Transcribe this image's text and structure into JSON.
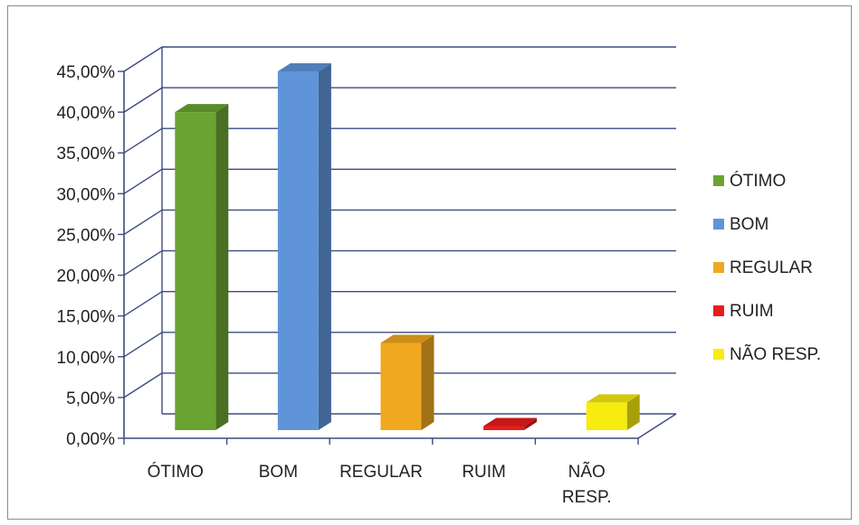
{
  "chart_data": {
    "type": "bar",
    "categories": [
      "ÓTIMO",
      "BOM",
      "REGULAR",
      "RUIM",
      "NÃO RESP."
    ],
    "category_lines": [
      [
        "ÓTIMO"
      ],
      [
        "BOM"
      ],
      [
        "REGULAR"
      ],
      [
        "RUIM"
      ],
      [
        "NÃO",
        "RESP."
      ]
    ],
    "values": [
      39.0,
      44.0,
      10.7,
      0.5,
      3.4
    ],
    "colors": [
      "#6aa332",
      "#5f95d8",
      "#f0a820",
      "#e81c1c",
      "#f7ec10"
    ],
    "ylim": [
      0,
      45
    ],
    "ytick_labels": [
      "0,00%",
      "5,00%",
      "10,00%",
      "15,00%",
      "20,00%",
      "25,00%",
      "30,00%",
      "35,00%",
      "40,00%",
      "45,00%"
    ],
    "legend": [
      "ÓTIMO",
      "BOM",
      "REGULAR",
      "RUIM",
      "NÃO RESP."
    ],
    "legend_position": "right",
    "grid": true,
    "title": "",
    "xlabel": "",
    "ylabel": ""
  }
}
